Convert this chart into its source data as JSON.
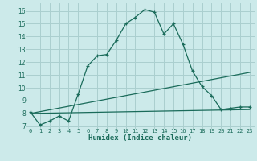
{
  "xlabel": "Humidex (Indice chaleur)",
  "xlim": [
    -0.5,
    23.5
  ],
  "ylim": [
    6.8,
    16.6
  ],
  "yticks": [
    7,
    8,
    9,
    10,
    11,
    12,
    13,
    14,
    15,
    16
  ],
  "xticks": [
    0,
    1,
    2,
    3,
    4,
    5,
    6,
    7,
    8,
    9,
    10,
    11,
    12,
    13,
    14,
    15,
    16,
    17,
    18,
    19,
    20,
    21,
    22,
    23
  ],
  "bg_color": "#cceaea",
  "grid_color": "#aacfcf",
  "line_color": "#1a6b5a",
  "curve1_x": [
    0,
    1,
    2,
    3,
    4,
    5,
    6,
    7,
    8,
    9,
    10,
    11,
    12,
    13,
    14,
    15,
    16,
    17,
    18,
    19,
    20,
    21,
    22,
    23
  ],
  "curve1_y": [
    8.1,
    7.1,
    7.4,
    7.8,
    7.4,
    9.5,
    11.7,
    12.5,
    12.6,
    13.7,
    15.0,
    15.5,
    16.1,
    15.9,
    14.2,
    15.0,
    13.4,
    11.3,
    10.1,
    9.4,
    8.3,
    8.4,
    8.5,
    8.5
  ],
  "curve2_x": [
    0,
    23
  ],
  "curve2_y": [
    8.0,
    8.3
  ],
  "curve3_x": [
    0,
    23
  ],
  "curve3_y": [
    8.0,
    11.2
  ]
}
